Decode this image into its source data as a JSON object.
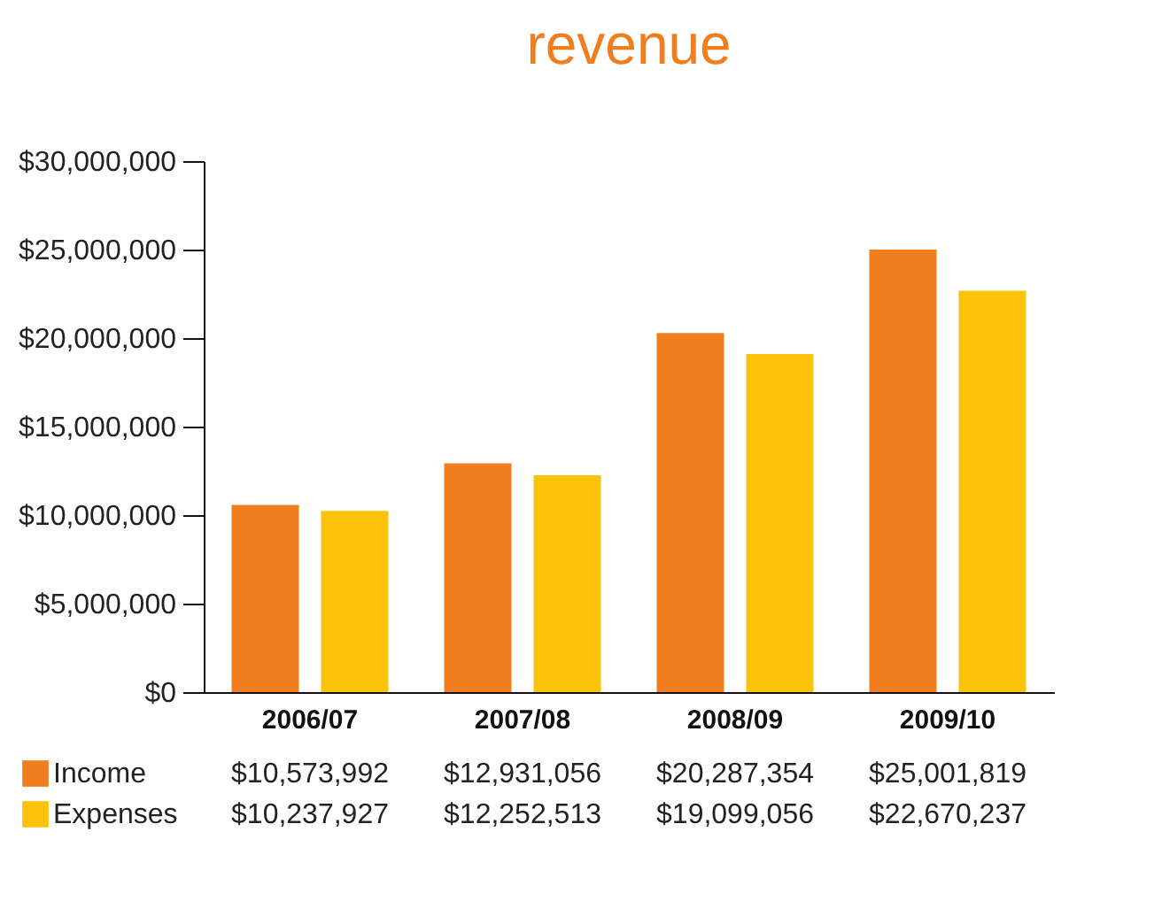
{
  "chart_data": {
    "type": "bar",
    "title": "revenue",
    "categories": [
      "2006/07",
      "2007/08",
      "2008/09",
      "2009/10"
    ],
    "series": [
      {
        "name": "Income",
        "color": "#f07d1e",
        "values": [
          10573992,
          12931056,
          20287354,
          25001819
        ],
        "value_labels": [
          "$10,573,992",
          "$12,931,056",
          "$20,287,354",
          "$25,001,819"
        ]
      },
      {
        "name": "Expenses",
        "color": "#fcc30a",
        "values": [
          10237927,
          12252513,
          19099056,
          22670237
        ],
        "value_labels": [
          "$10,237,927",
          "$12,252,513",
          "$19,099,056",
          "$22,670,237"
        ]
      }
    ],
    "ylim": [
      0,
      30000000
    ],
    "yticks": [
      {
        "value": 0,
        "label": "$0"
      },
      {
        "value": 5000000,
        "label": "$5,000,000"
      },
      {
        "value": 10000000,
        "label": "$10,000,000"
      },
      {
        "value": 15000000,
        "label": "$15,000,000"
      },
      {
        "value": 20000000,
        "label": "$20,000,000"
      },
      {
        "value": 25000000,
        "label": "$25,000,000"
      },
      {
        "value": 30000000,
        "label": "$30,000,000"
      }
    ],
    "grid": false,
    "legend": "bottom left"
  }
}
